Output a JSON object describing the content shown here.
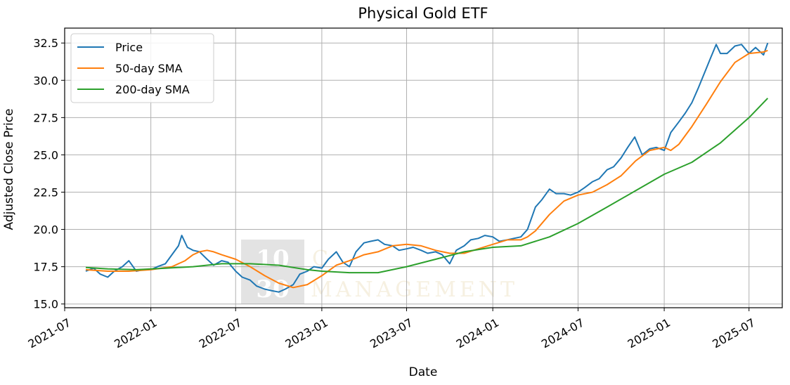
{
  "chart_data": {
    "type": "line",
    "title": "Physical Gold ETF",
    "xlabel": "Date",
    "ylabel": "Adjusted Close Price",
    "xlim": [
      "2021-07-01",
      "2025-09-10"
    ],
    "ylim": [
      14.75,
      33.5
    ],
    "grid": true,
    "legend_position": "top-left",
    "x_ticks": [
      "2021-07",
      "2022-01",
      "2022-07",
      "2023-01",
      "2023-07",
      "2024-01",
      "2024-07",
      "2025-01",
      "2025-07"
    ],
    "y_ticks": [
      15.0,
      17.5,
      20.0,
      22.5,
      25.0,
      27.5,
      30.0,
      32.5
    ],
    "y_tick_labels": [
      "15.0",
      "17.5",
      "20.0",
      "22.5",
      "25.0",
      "27.5",
      "30.0",
      "32.5"
    ],
    "watermark": {
      "number_top": "10",
      "number_bottom": "30",
      "text_top": "C",
      "text_bottom": "MANAGEMENT"
    },
    "series": [
      {
        "name": "Price",
        "color": "#1f77b4",
        "x": [
          "2021-08-15",
          "2021-09-01",
          "2021-09-15",
          "2021-10-01",
          "2021-10-15",
          "2021-11-01",
          "2021-11-15",
          "2021-12-01",
          "2021-12-15",
          "2022-01-01",
          "2022-01-15",
          "2022-02-01",
          "2022-02-15",
          "2022-03-01",
          "2022-03-08",
          "2022-03-20",
          "2022-04-01",
          "2022-04-15",
          "2022-05-01",
          "2022-05-15",
          "2022-06-01",
          "2022-06-15",
          "2022-07-01",
          "2022-07-15",
          "2022-08-01",
          "2022-08-15",
          "2022-09-01",
          "2022-09-15",
          "2022-10-01",
          "2022-10-15",
          "2022-11-01",
          "2022-11-15",
          "2022-12-01",
          "2022-12-15",
          "2023-01-01",
          "2023-01-15",
          "2023-02-01",
          "2023-02-15",
          "2023-03-01",
          "2023-03-15",
          "2023-04-01",
          "2023-04-15",
          "2023-05-01",
          "2023-05-15",
          "2023-06-01",
          "2023-06-15",
          "2023-07-01",
          "2023-07-15",
          "2023-08-01",
          "2023-08-15",
          "2023-09-01",
          "2023-09-15",
          "2023-10-01",
          "2023-10-15",
          "2023-11-01",
          "2023-11-15",
          "2023-12-01",
          "2023-12-15",
          "2024-01-01",
          "2024-01-15",
          "2024-02-01",
          "2024-02-15",
          "2024-03-01",
          "2024-03-15",
          "2024-04-01",
          "2024-04-15",
          "2024-05-01",
          "2024-05-15",
          "2024-06-01",
          "2024-06-15",
          "2024-07-01",
          "2024-07-15",
          "2024-08-01",
          "2024-08-15",
          "2024-09-01",
          "2024-09-15",
          "2024-10-01",
          "2024-10-15",
          "2024-10-30",
          "2024-11-15",
          "2024-12-01",
          "2024-12-15",
          "2025-01-01",
          "2025-01-15",
          "2025-02-01",
          "2025-02-15",
          "2025-03-01",
          "2025-03-15",
          "2025-04-01",
          "2025-04-10",
          "2025-04-22",
          "2025-05-01",
          "2025-05-15",
          "2025-06-01",
          "2025-06-15",
          "2025-07-01",
          "2025-07-15",
          "2025-08-01",
          "2025-08-10"
        ],
        "y": [
          17.2,
          17.4,
          17.0,
          16.8,
          17.2,
          17.5,
          17.9,
          17.2,
          17.3,
          17.3,
          17.5,
          17.7,
          18.3,
          18.9,
          19.6,
          18.8,
          18.6,
          18.5,
          18.0,
          17.6,
          17.9,
          17.8,
          17.2,
          16.8,
          16.6,
          16.2,
          16.0,
          15.9,
          15.8,
          16.0,
          16.3,
          17.0,
          17.2,
          17.5,
          17.4,
          18.0,
          18.5,
          17.8,
          17.5,
          18.5,
          19.1,
          19.2,
          19.3,
          19.0,
          18.9,
          18.6,
          18.7,
          18.8,
          18.6,
          18.4,
          18.5,
          18.3,
          17.7,
          18.6,
          18.9,
          19.3,
          19.4,
          19.6,
          19.5,
          19.2,
          19.3,
          19.4,
          19.5,
          20.0,
          21.5,
          22.0,
          22.7,
          22.4,
          22.4,
          22.3,
          22.5,
          22.8,
          23.2,
          23.4,
          24.0,
          24.2,
          24.8,
          25.5,
          26.2,
          25.0,
          25.4,
          25.5,
          25.3,
          26.5,
          27.2,
          27.8,
          28.5,
          29.5,
          30.8,
          31.5,
          32.4,
          31.8,
          31.8,
          32.3,
          32.4,
          31.8,
          32.2,
          31.7,
          32.5
        ]
      },
      {
        "name": "50-day SMA",
        "color": "#ff7f0e",
        "x": [
          "2021-08-15",
          "2021-10-01",
          "2021-11-15",
          "2022-01-01",
          "2022-02-15",
          "2022-03-15",
          "2022-04-01",
          "2022-04-15",
          "2022-05-01",
          "2022-05-15",
          "2022-06-01",
          "2022-07-01",
          "2022-08-01",
          "2022-09-01",
          "2022-10-01",
          "2022-11-01",
          "2022-12-01",
          "2023-01-01",
          "2023-02-01",
          "2023-03-01",
          "2023-04-01",
          "2023-05-01",
          "2023-06-01",
          "2023-07-01",
          "2023-08-01",
          "2023-09-01",
          "2023-10-01",
          "2023-11-01",
          "2023-12-01",
          "2024-01-01",
          "2024-02-01",
          "2024-03-01",
          "2024-03-15",
          "2024-04-01",
          "2024-05-01",
          "2024-06-01",
          "2024-07-01",
          "2024-08-01",
          "2024-09-01",
          "2024-10-01",
          "2024-11-01",
          "2024-12-01",
          "2025-01-01",
          "2025-01-15",
          "2025-02-01",
          "2025-03-01",
          "2025-04-01",
          "2025-05-01",
          "2025-06-01",
          "2025-07-01",
          "2025-08-01",
          "2025-08-10"
        ],
        "y": [
          17.3,
          17.2,
          17.2,
          17.3,
          17.5,
          17.9,
          18.3,
          18.5,
          18.6,
          18.5,
          18.3,
          18.0,
          17.5,
          16.9,
          16.4,
          16.1,
          16.3,
          16.9,
          17.6,
          17.9,
          18.3,
          18.5,
          18.9,
          19.0,
          18.9,
          18.6,
          18.4,
          18.4,
          18.7,
          19.0,
          19.3,
          19.3,
          19.5,
          19.9,
          21.0,
          21.9,
          22.3,
          22.5,
          23.0,
          23.6,
          24.6,
          25.3,
          25.5,
          25.3,
          25.7,
          26.9,
          28.4,
          29.9,
          31.2,
          31.8,
          31.9,
          32.0
        ]
      },
      {
        "name": "200-day SMA",
        "color": "#2ca02c",
        "x": [
          "2021-08-15",
          "2021-10-01",
          "2021-12-01",
          "2022-02-01",
          "2022-04-01",
          "2022-06-01",
          "2022-08-01",
          "2022-10-01",
          "2022-12-01",
          "2023-01-01",
          "2023-03-01",
          "2023-05-01",
          "2023-07-01",
          "2023-09-01",
          "2023-11-01",
          "2024-01-01",
          "2024-03-01",
          "2024-05-01",
          "2024-07-01",
          "2024-09-01",
          "2024-11-01",
          "2025-01-01",
          "2025-03-01",
          "2025-05-01",
          "2025-07-01",
          "2025-08-10"
        ],
        "y": [
          17.45,
          17.35,
          17.3,
          17.4,
          17.5,
          17.7,
          17.7,
          17.6,
          17.3,
          17.2,
          17.1,
          17.1,
          17.5,
          18.0,
          18.5,
          18.8,
          18.9,
          19.5,
          20.4,
          21.5,
          22.6,
          23.7,
          24.5,
          25.8,
          27.5,
          28.8
        ]
      }
    ]
  }
}
